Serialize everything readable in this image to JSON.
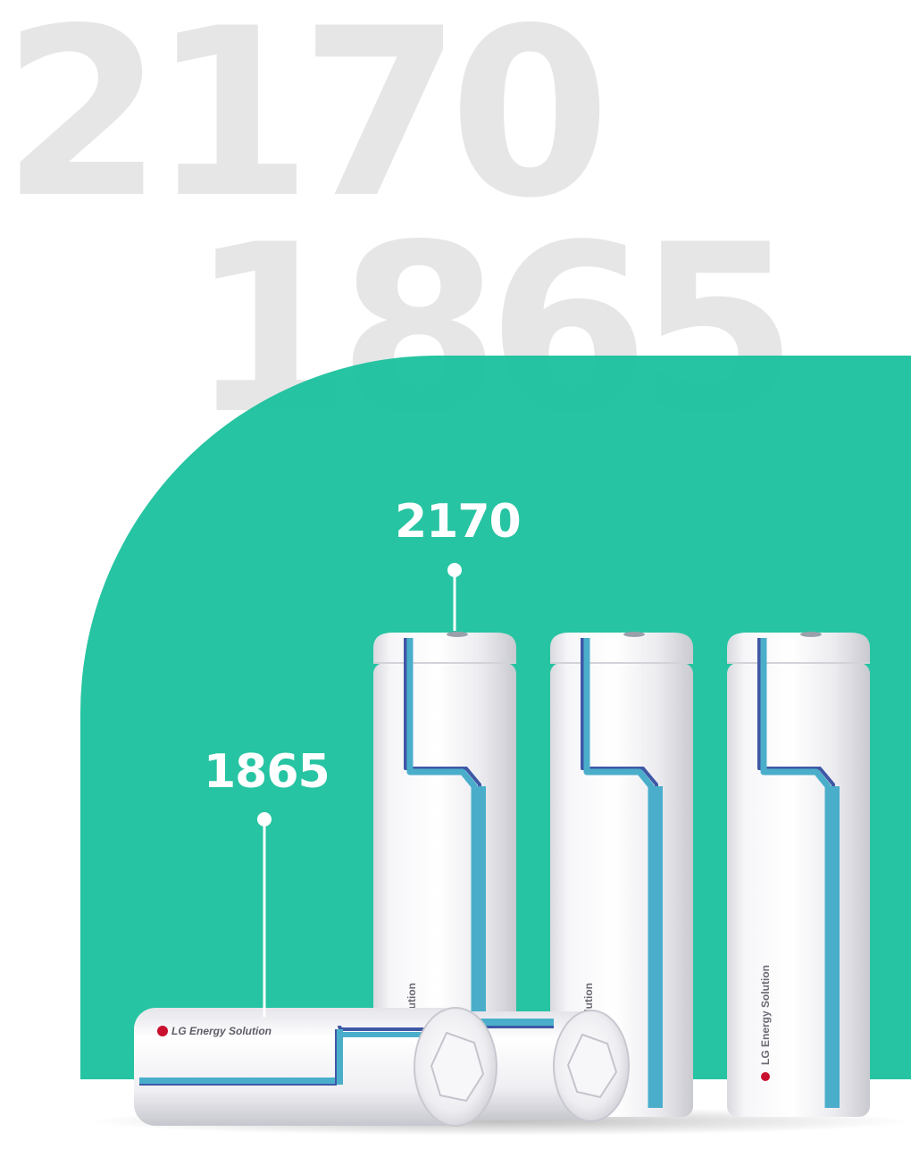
{
  "background_numbers": {
    "top": "2170",
    "bottom": "1865"
  },
  "labels": {
    "cell_2170": "2170",
    "cell_1865": "1865"
  },
  "brand": {
    "name": "LG Energy Solution"
  },
  "colors": {
    "green": "#15bf9b",
    "bg_number": "#e6e6e6",
    "cell_body": "#f3f3f6",
    "stripe_blue": "#4aaecb",
    "stripe_navy": "#3f58a6",
    "logo_red": "#c8102e"
  },
  "icons": [
    "leader-dot",
    "lg-logo-mark"
  ]
}
